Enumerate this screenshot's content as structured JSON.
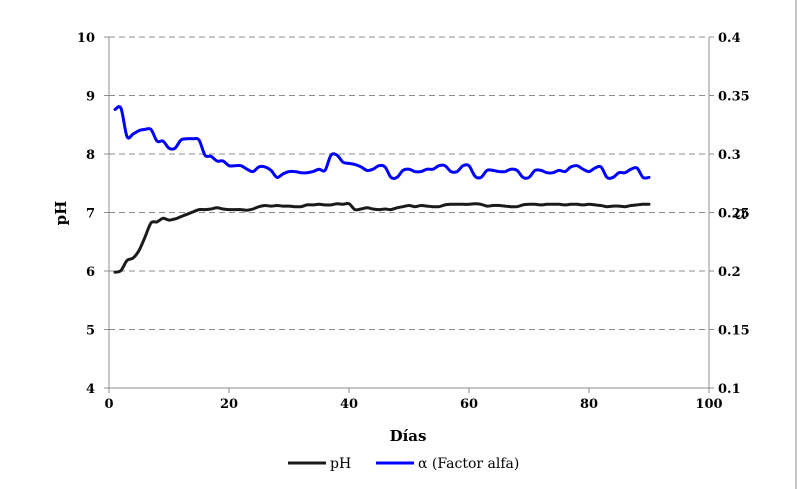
{
  "chart_data": {
    "type": "line",
    "title": "",
    "xlabel": "Días",
    "ylabel": "pH",
    "y2label": "α",
    "xlim": [
      0,
      100
    ],
    "ylim": [
      4,
      10
    ],
    "y2lim": [
      0.1,
      0.4
    ],
    "xticks": [
      0,
      20,
      40,
      60,
      80,
      100
    ],
    "xtick_labels": [
      "0",
      "20",
      "40",
      "60",
      "80",
      "100"
    ],
    "yticks": [
      4,
      5,
      6,
      7,
      8,
      9,
      10
    ],
    "ytick_labels": [
      "4",
      "5",
      "6",
      "7",
      "8",
      "9",
      "10"
    ],
    "y2ticks": [
      0.1,
      0.15,
      0.2,
      0.25,
      0.3,
      0.35,
      0.4
    ],
    "y2tick_labels": [
      "0.1",
      "0.15",
      "0.2",
      "0.25",
      "0.3",
      "0.35",
      "0.4"
    ],
    "grid": true,
    "legend_position": "bottom",
    "series": [
      {
        "name": "pH",
        "axis": "left",
        "color": "#1a1a1a",
        "points": [
          [
            1,
            5.98
          ],
          [
            2,
            6.01
          ],
          [
            3,
            6.18
          ],
          [
            4,
            6.22
          ],
          [
            5,
            6.35
          ],
          [
            6,
            6.58
          ],
          [
            7,
            6.82
          ],
          [
            8,
            6.84
          ],
          [
            9,
            6.9
          ],
          [
            10,
            6.87
          ],
          [
            11,
            6.89
          ],
          [
            12,
            6.93
          ],
          [
            13,
            6.97
          ],
          [
            14,
            7.01
          ],
          [
            15,
            7.05
          ],
          [
            16,
            7.05
          ],
          [
            17,
            7.06
          ],
          [
            18,
            7.08
          ],
          [
            19,
            7.06
          ],
          [
            20,
            7.05
          ],
          [
            21,
            7.05
          ],
          [
            22,
            7.05
          ],
          [
            23,
            7.04
          ],
          [
            24,
            7.06
          ],
          [
            25,
            7.1
          ],
          [
            26,
            7.12
          ],
          [
            27,
            7.11
          ],
          [
            28,
            7.12
          ],
          [
            29,
            7.11
          ],
          [
            30,
            7.11
          ],
          [
            31,
            7.1
          ],
          [
            32,
            7.1
          ],
          [
            33,
            7.13
          ],
          [
            34,
            7.13
          ],
          [
            35,
            7.14
          ],
          [
            36,
            7.13
          ],
          [
            37,
            7.13
          ],
          [
            38,
            7.15
          ],
          [
            39,
            7.14
          ],
          [
            40,
            7.15
          ],
          [
            41,
            7.05
          ],
          [
            42,
            7.06
          ],
          [
            43,
            7.08
          ],
          [
            44,
            7.06
          ],
          [
            45,
            7.05
          ],
          [
            46,
            7.06
          ],
          [
            47,
            7.05
          ],
          [
            48,
            7.08
          ],
          [
            49,
            7.1
          ],
          [
            50,
            7.12
          ],
          [
            51,
            7.1
          ],
          [
            52,
            7.12
          ],
          [
            53,
            7.11
          ],
          [
            54,
            7.1
          ],
          [
            55,
            7.1
          ],
          [
            56,
            7.13
          ],
          [
            57,
            7.14
          ],
          [
            58,
            7.14
          ],
          [
            59,
            7.14
          ],
          [
            60,
            7.14
          ],
          [
            61,
            7.15
          ],
          [
            62,
            7.14
          ],
          [
            63,
            7.11
          ],
          [
            64,
            7.12
          ],
          [
            65,
            7.12
          ],
          [
            66,
            7.11
          ],
          [
            67,
            7.1
          ],
          [
            68,
            7.1
          ],
          [
            69,
            7.13
          ],
          [
            70,
            7.14
          ],
          [
            71,
            7.14
          ],
          [
            72,
            7.13
          ],
          [
            73,
            7.14
          ],
          [
            74,
            7.14
          ],
          [
            75,
            7.14
          ],
          [
            76,
            7.13
          ],
          [
            77,
            7.14
          ],
          [
            78,
            7.14
          ],
          [
            79,
            7.13
          ],
          [
            80,
            7.14
          ],
          [
            81,
            7.13
          ],
          [
            82,
            7.12
          ],
          [
            83,
            7.1
          ],
          [
            84,
            7.11
          ],
          [
            85,
            7.11
          ],
          [
            86,
            7.1
          ],
          [
            87,
            7.12
          ],
          [
            88,
            7.13
          ],
          [
            89,
            7.14
          ],
          [
            90,
            7.14
          ]
        ]
      },
      {
        "name": "α (Factor alfa)",
        "axis": "right",
        "color": "#0000ff",
        "points": [
          [
            1,
            0.338
          ],
          [
            2,
            0.339
          ],
          [
            3,
            0.315
          ],
          [
            4,
            0.317
          ],
          [
            5,
            0.32
          ],
          [
            6,
            0.321
          ],
          [
            7,
            0.321
          ],
          [
            8,
            0.311
          ],
          [
            9,
            0.311
          ],
          [
            10,
            0.305
          ],
          [
            11,
            0.305
          ],
          [
            12,
            0.312
          ],
          [
            13,
            0.313
          ],
          [
            14,
            0.313
          ],
          [
            15,
            0.312
          ],
          [
            16,
            0.299
          ],
          [
            17,
            0.298
          ],
          [
            18,
            0.294
          ],
          [
            19,
            0.294
          ],
          [
            20,
            0.29
          ],
          [
            21,
            0.29
          ],
          [
            22,
            0.29
          ],
          [
            23,
            0.287
          ],
          [
            24,
            0.285
          ],
          [
            25,
            0.289
          ],
          [
            26,
            0.289
          ],
          [
            27,
            0.286
          ],
          [
            28,
            0.28
          ],
          [
            29,
            0.283
          ],
          [
            30,
            0.285
          ],
          [
            31,
            0.285
          ],
          [
            32,
            0.284
          ],
          [
            33,
            0.284
          ],
          [
            34,
            0.285
          ],
          [
            35,
            0.287
          ],
          [
            36,
            0.286
          ],
          [
            37,
            0.299
          ],
          [
            38,
            0.299
          ],
          [
            39,
            0.293
          ],
          [
            40,
            0.292
          ],
          [
            41,
            0.291
          ],
          [
            42,
            0.289
          ],
          [
            43,
            0.286
          ],
          [
            44,
            0.287
          ],
          [
            45,
            0.29
          ],
          [
            46,
            0.289
          ],
          [
            47,
            0.28
          ],
          [
            48,
            0.28
          ],
          [
            49,
            0.286
          ],
          [
            50,
            0.287
          ],
          [
            51,
            0.285
          ],
          [
            52,
            0.285
          ],
          [
            53,
            0.287
          ],
          [
            54,
            0.287
          ],
          [
            55,
            0.29
          ],
          [
            56,
            0.29
          ],
          [
            57,
            0.285
          ],
          [
            58,
            0.285
          ],
          [
            59,
            0.29
          ],
          [
            60,
            0.29
          ],
          [
            61,
            0.281
          ],
          [
            62,
            0.28
          ],
          [
            63,
            0.286
          ],
          [
            64,
            0.286
          ],
          [
            65,
            0.285
          ],
          [
            66,
            0.285
          ],
          [
            67,
            0.287
          ],
          [
            68,
            0.286
          ],
          [
            69,
            0.28
          ],
          [
            70,
            0.28
          ],
          [
            71,
            0.286
          ],
          [
            72,
            0.286
          ],
          [
            73,
            0.284
          ],
          [
            74,
            0.284
          ],
          [
            75,
            0.286
          ],
          [
            76,
            0.285
          ],
          [
            77,
            0.289
          ],
          [
            78,
            0.29
          ],
          [
            79,
            0.287
          ],
          [
            80,
            0.285
          ],
          [
            81,
            0.288
          ],
          [
            82,
            0.289
          ],
          [
            83,
            0.28
          ],
          [
            84,
            0.28
          ],
          [
            85,
            0.284
          ],
          [
            86,
            0.284
          ],
          [
            87,
            0.287
          ],
          [
            88,
            0.288
          ],
          [
            89,
            0.28
          ],
          [
            90,
            0.28
          ]
        ]
      }
    ]
  }
}
